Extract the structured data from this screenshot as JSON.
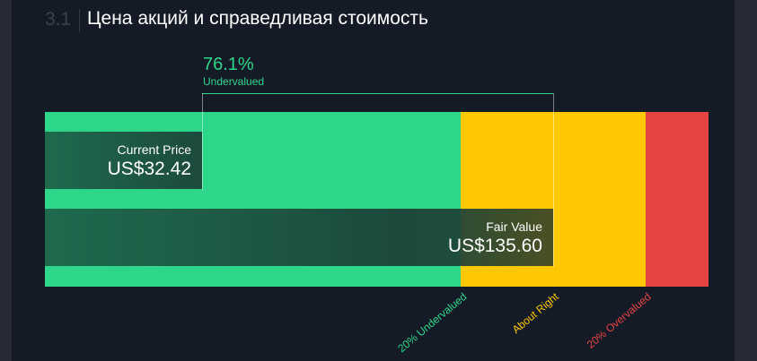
{
  "section": {
    "number": "3.1",
    "title": "Цена акций и справедливая стоимость"
  },
  "valuation": {
    "percent": "76.1%",
    "status": "Undervalued"
  },
  "current_price": {
    "label": "Current Price",
    "value": "US$32.42"
  },
  "fair_value": {
    "label": "Fair Value",
    "value": "US$135.60"
  },
  "zones": [
    {
      "label": "20% Undervalued",
      "color": "#2ed68a"
    },
    {
      "label": "About Right",
      "color": "#ffc800"
    },
    {
      "label": "20% Overvalued",
      "color": "#e64343"
    }
  ]
}
